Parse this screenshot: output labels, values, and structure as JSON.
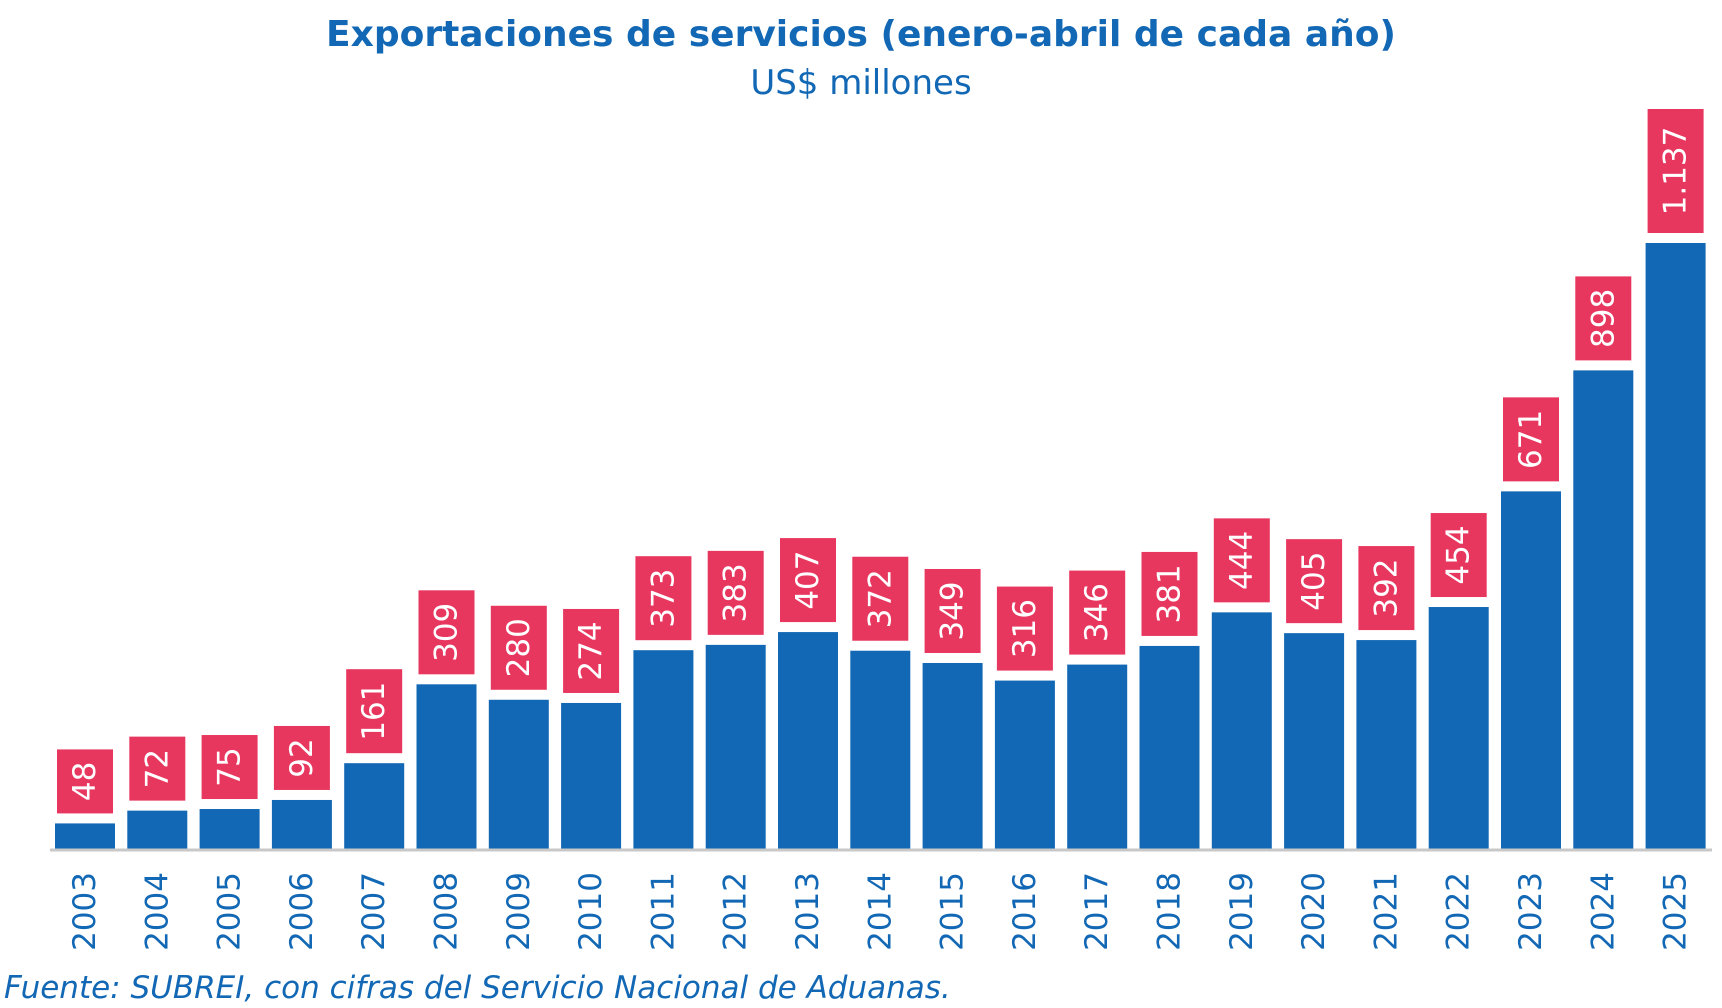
{
  "chart_data": {
    "type": "bar",
    "title": "Exportaciones de servicios (enero-abril de cada año)",
    "subtitle": "US$ millones",
    "categories": [
      "2003",
      "2004",
      "2005",
      "2006",
      "2007",
      "2008",
      "2009",
      "2010",
      "2011",
      "2012",
      "2013",
      "2014",
      "2015",
      "2016",
      "2017",
      "2018",
      "2019",
      "2020",
      "2021",
      "2022",
      "2023",
      "2024",
      "2025"
    ],
    "values": [
      48,
      72,
      75,
      92,
      161,
      309,
      280,
      274,
      373,
      383,
      407,
      372,
      349,
      316,
      346,
      381,
      444,
      405,
      392,
      454,
      671,
      898,
      1137
    ],
    "data_labels": [
      "48",
      "72",
      "75",
      "92",
      "161",
      "309",
      "280",
      "274",
      "373",
      "383",
      "407",
      "372",
      "349",
      "316",
      "346",
      "381",
      "444",
      "405",
      "392",
      "454",
      "671",
      "898",
      "1.137"
    ],
    "ylim": [
      0,
      1137
    ],
    "grid": false,
    "legend": "none",
    "colors": {
      "bar": "#1268b4",
      "label_box": "#e8375f",
      "label_text": "#ffffff",
      "text": "#1268b4",
      "axis": "#c8c8c8"
    }
  },
  "source_note": "Fuente: SUBREI, con cifras del Servicio Nacional de Aduanas."
}
